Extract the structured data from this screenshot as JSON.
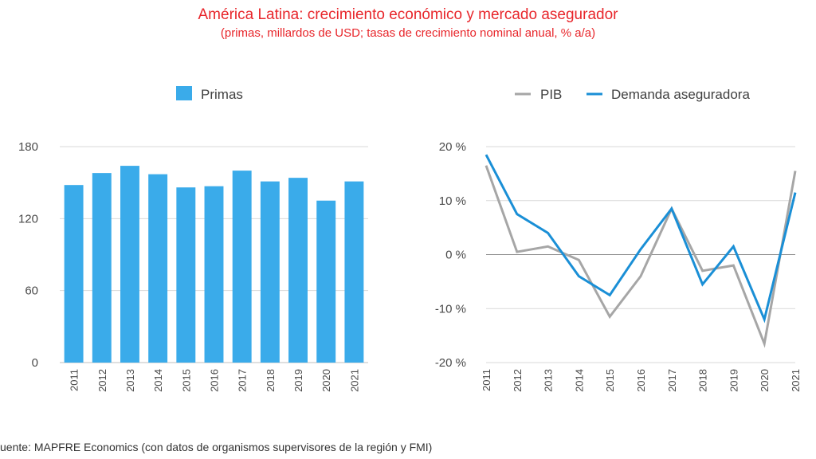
{
  "title": "América Latina: crecimiento económico y mercado asegurador",
  "subtitle": "(primas, millardos de USD; tasas de crecimiento nominal anual, % a/a)",
  "source": "uente: MAPFRE Economics (con datos de organismos supervisores de la región y FMI)",
  "chart_data": [
    {
      "type": "bar",
      "categories": [
        "2011",
        "2012",
        "2013",
        "2014",
        "2015",
        "2016",
        "2017",
        "2018",
        "2019",
        "2020",
        "2021"
      ],
      "series": [
        {
          "name": "Primas",
          "color": "#3aabea",
          "values": [
            148,
            158,
            164,
            157,
            146,
            147,
            160,
            151,
            154,
            135,
            151
          ]
        }
      ],
      "ylim": [
        0,
        180
      ],
      "yticks": [
        0,
        60,
        120,
        180
      ],
      "ytick_labels": [
        "0",
        "60",
        "120",
        "180"
      ],
      "grid": true,
      "legend": "top-center"
    },
    {
      "type": "line",
      "categories": [
        "2011",
        "2012",
        "2013",
        "2014",
        "2015",
        "2016",
        "2017",
        "2018",
        "2019",
        "2020",
        "2021"
      ],
      "series": [
        {
          "name": "PIB",
          "color": "#a6a6a6",
          "values": [
            16.5,
            0.5,
            1.5,
            -1.0,
            -11.5,
            -4.0,
            8.5,
            -3.0,
            -2.0,
            -16.5,
            15.5
          ]
        },
        {
          "name": "Demanda aseguradora",
          "color": "#1a8fd6",
          "values": [
            18.5,
            7.5,
            4.0,
            -4.0,
            -7.5,
            1.0,
            8.5,
            -5.5,
            1.5,
            -12.0,
            11.5
          ]
        }
      ],
      "ylim": [
        -20,
        20
      ],
      "yticks": [
        -20,
        -10,
        0,
        10,
        20
      ],
      "ytick_labels": [
        "-20 %",
        "-10 %",
        "0 %",
        "10 %",
        "20 %"
      ],
      "grid": true,
      "legend": "top-center"
    }
  ]
}
